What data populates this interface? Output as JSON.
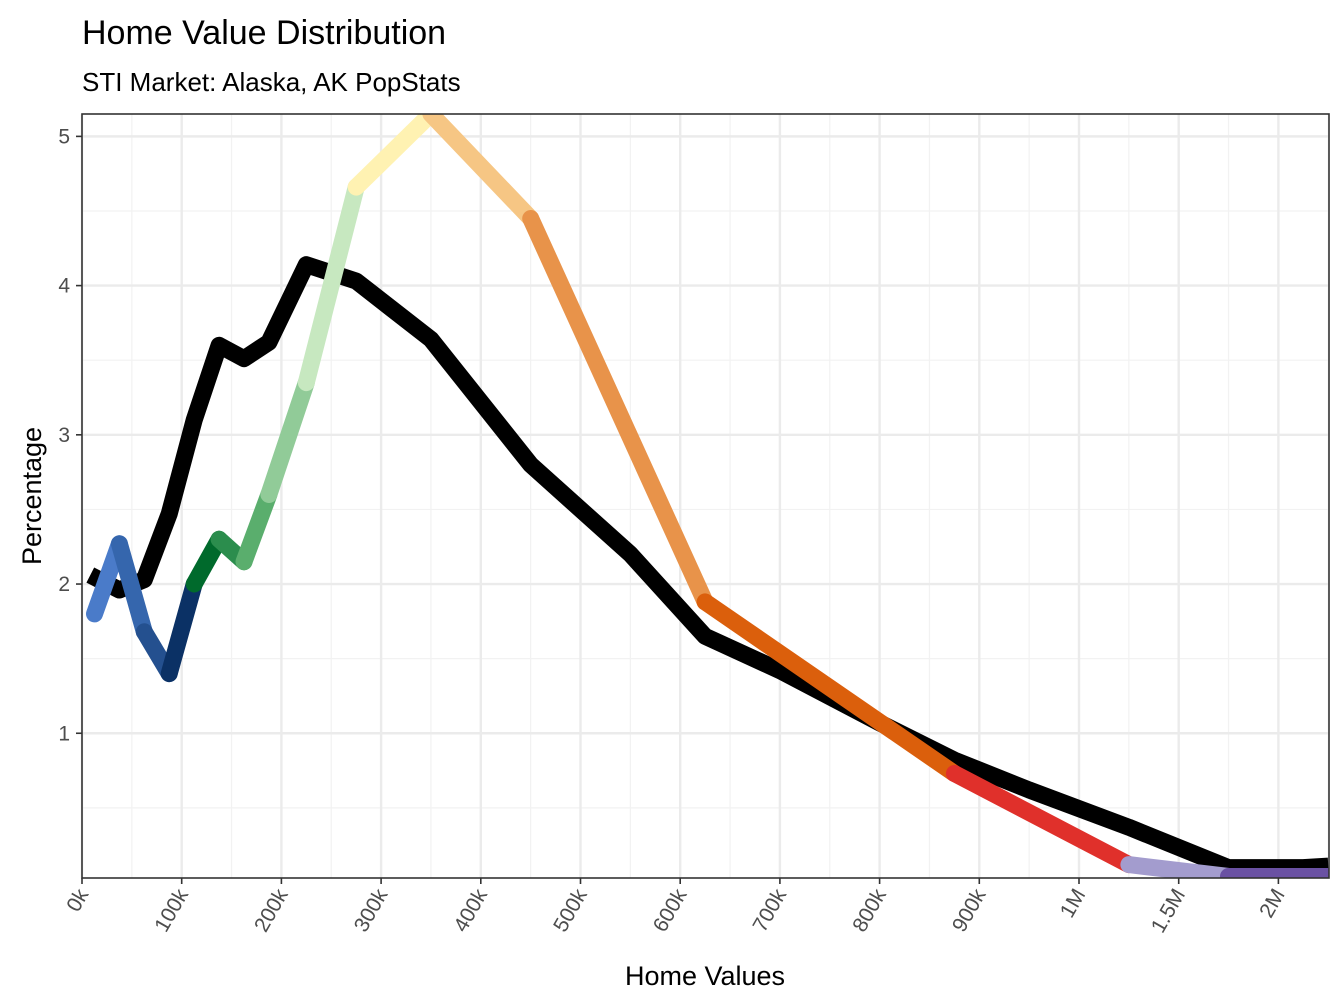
{
  "chart_data": {
    "type": "line",
    "title": "Home Value Distribution",
    "subtitle": "STI Market: Alaska, AK PopStats",
    "xlabel": "Home Values",
    "ylabel": "Percentage",
    "x_tick_labels": [
      "0k",
      "100k",
      "200k",
      "300k",
      "400k",
      "500k",
      "600k",
      "700k",
      "800k",
      "900k",
      "1M",
      "1.5M",
      "2M"
    ],
    "y_ticks": [
      1,
      2,
      3,
      4,
      5
    ],
    "ylim": [
      0.03,
      5.15
    ],
    "grid": true,
    "legend": "none",
    "series": [
      {
        "name": "PopStats",
        "color": "#000000",
        "points": [
          [
            0.0833,
            2.06
          ],
          [
            0.375,
            1.96
          ],
          [
            0.625,
            2.03
          ],
          [
            0.875,
            2.47
          ],
          [
            1.125,
            3.1
          ],
          [
            1.375,
            3.6
          ],
          [
            1.625,
            3.51
          ],
          [
            1.875,
            3.62
          ],
          [
            2.25,
            4.14
          ],
          [
            2.75,
            4.03
          ],
          [
            3.5,
            3.64
          ],
          [
            4.5,
            2.8
          ],
          [
            5.5,
            2.2
          ],
          [
            6.25,
            1.65
          ],
          [
            7.0,
            1.42
          ],
          [
            8.0,
            1.07
          ],
          [
            8.75,
            0.82
          ],
          [
            9.5,
            0.62
          ],
          [
            10.5,
            0.37
          ],
          [
            11.5,
            0.1
          ],
          [
            12.25,
            0.1
          ],
          [
            12.5,
            0.11
          ]
        ]
      },
      {
        "name": "STI Market",
        "segments": [
          {
            "color": "#4a7bc9",
            "points": [
              [
                0.125,
                1.8
              ],
              [
                0.375,
                2.27
              ]
            ]
          },
          {
            "color": "#3566ad",
            "points": [
              [
                0.375,
                2.27
              ],
              [
                0.625,
                1.68
              ]
            ]
          },
          {
            "color": "#24508f",
            "points": [
              [
                0.625,
                1.68
              ],
              [
                0.875,
                1.4
              ]
            ]
          },
          {
            "color": "#0b3165",
            "points": [
              [
                0.875,
                1.4
              ],
              [
                1.125,
                2.0
              ]
            ]
          },
          {
            "color": "#006a2c",
            "points": [
              [
                1.125,
                2.0
              ],
              [
                1.375,
                2.3
              ]
            ]
          },
          {
            "color": "#2b8d4d",
            "points": [
              [
                1.375,
                2.3
              ],
              [
                1.625,
                2.15
              ]
            ]
          },
          {
            "color": "#5aae6d",
            "points": [
              [
                1.625,
                2.15
              ],
              [
                1.875,
                2.6
              ]
            ]
          },
          {
            "color": "#91cb98",
            "points": [
              [
                1.875,
                2.6
              ],
              [
                2.25,
                3.35
              ]
            ]
          },
          {
            "color": "#c7e8c0",
            "points": [
              [
                2.25,
                3.35
              ],
              [
                2.75,
                4.66
              ]
            ]
          },
          {
            "color": "#fff2b2",
            "points": [
              [
                2.75,
                4.66
              ],
              [
                3.5,
                5.15
              ]
            ]
          },
          {
            "color": "#f6c684",
            "points": [
              [
                3.5,
                5.15
              ],
              [
                4.5,
                4.45
              ]
            ]
          },
          {
            "color": "#e8934a",
            "points": [
              [
                4.5,
                4.45
              ],
              [
                6.25,
                1.88
              ]
            ]
          },
          {
            "color": "#db5f0c",
            "points": [
              [
                6.25,
                1.88
              ],
              [
                8.75,
                0.73
              ]
            ]
          },
          {
            "color": "#e0302b",
            "points": [
              [
                8.75,
                0.73
              ],
              [
                10.5,
                0.12
              ]
            ]
          },
          {
            "color": "#a39cce",
            "points": [
              [
                10.5,
                0.12
              ],
              [
                11.5,
                0.04
              ]
            ]
          },
          {
            "color": "#6a51a3",
            "points": [
              [
                11.5,
                0.04
              ],
              [
                12.25,
                0.04
              ],
              [
                12.5,
                0.04
              ]
            ]
          }
        ]
      }
    ]
  }
}
